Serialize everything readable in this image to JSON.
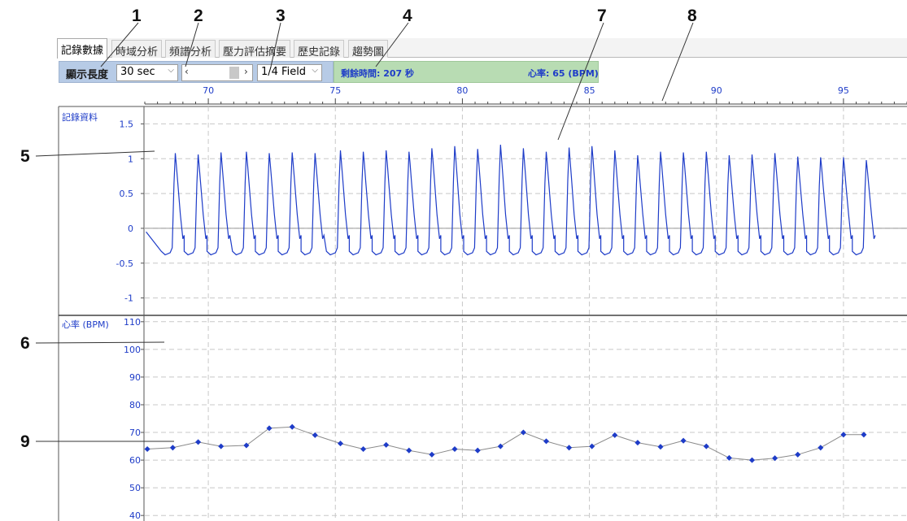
{
  "callouts": [
    "1",
    "2",
    "3",
    "4",
    "5",
    "6",
    "7",
    "8",
    "9"
  ],
  "tabs": [
    "記錄數據",
    "時域分析",
    "頻譜分析",
    "壓力評估摘要",
    "歷史記錄",
    "趨勢圖"
  ],
  "toolbar": {
    "display_length_label": "顯示長度",
    "display_length_value": "30 sec",
    "scroll_left": "‹",
    "scroll_right": "›",
    "field_value": "1/4 Field"
  },
  "status": {
    "remaining_time": "剩餘時間: 207 秒",
    "heart_rate": "心率: 65 (BPM)"
  },
  "colors": {
    "trace": "#1e3cc8",
    "hr_line": "#8a8a8a",
    "grid": "#c8c8c8",
    "toolbar_bg": "#b7cbe6",
    "status_bg": "#b8dcb3"
  },
  "chart_data": [
    {
      "type": "line",
      "title": "記錄資料",
      "x_ticks": [
        "70",
        "75",
        "80",
        "85",
        "90",
        "95"
      ],
      "y_ticks": [
        "1.5",
        "1",
        "0.5",
        "0",
        "-0.5",
        "-1"
      ],
      "xlim": [
        67.5,
        97.5
      ],
      "ylim": [
        -1.25,
        1.75
      ],
      "beats": [
        {
          "x": 68.7,
          "peak": 1.08
        },
        {
          "x": 69.6,
          "peak": 1.06
        },
        {
          "x": 70.5,
          "peak": 1.09
        },
        {
          "x": 71.5,
          "peak": 1.1
        },
        {
          "x": 72.4,
          "peak": 1.08
        },
        {
          "x": 73.3,
          "peak": 1.09
        },
        {
          "x": 74.2,
          "peak": 1.08
        },
        {
          "x": 75.2,
          "peak": 1.12
        },
        {
          "x": 76.1,
          "peak": 1.1
        },
        {
          "x": 77.0,
          "peak": 1.12
        },
        {
          "x": 77.9,
          "peak": 1.1
        },
        {
          "x": 78.8,
          "peak": 1.15
        },
        {
          "x": 79.7,
          "peak": 1.18
        },
        {
          "x": 80.6,
          "peak": 1.14
        },
        {
          "x": 81.5,
          "peak": 1.2
        },
        {
          "x": 82.4,
          "peak": 1.15
        },
        {
          "x": 83.3,
          "peak": 1.1
        },
        {
          "x": 84.2,
          "peak": 1.16
        },
        {
          "x": 85.1,
          "peak": 1.18
        },
        {
          "x": 86.0,
          "peak": 1.12
        },
        {
          "x": 86.9,
          "peak": 1.05
        },
        {
          "x": 87.8,
          "peak": 1.1
        },
        {
          "x": 88.7,
          "peak": 1.09
        },
        {
          "x": 89.6,
          "peak": 1.1
        },
        {
          "x": 90.5,
          "peak": 1.05
        },
        {
          "x": 91.4,
          "peak": 1.06
        },
        {
          "x": 92.3,
          "peak": 1.08
        },
        {
          "x": 93.2,
          "peak": 1.03
        },
        {
          "x": 94.1,
          "peak": 1.02
        },
        {
          "x": 95.0,
          "peak": 1.02
        },
        {
          "x": 95.9,
          "peak": 0.98
        }
      ],
      "baseline": -0.38
    },
    {
      "type": "line",
      "title": "心率 (BPM)",
      "x_ticks": [
        "70",
        "75",
        "80",
        "85",
        "90",
        "95"
      ],
      "y_ticks": [
        "110",
        "100",
        "90",
        "80",
        "70",
        "60",
        "50",
        "40"
      ],
      "xlim": [
        67.5,
        97.5
      ],
      "ylim": [
        38,
        112
      ],
      "x": [
        67.6,
        68.6,
        69.6,
        70.5,
        71.5,
        72.4,
        73.3,
        74.2,
        75.2,
        76.1,
        77.0,
        77.9,
        78.8,
        79.7,
        80.6,
        81.5,
        82.4,
        83.3,
        84.2,
        85.1,
        86.0,
        86.9,
        87.8,
        88.7,
        89.6,
        90.5,
        91.4,
        92.3,
        93.2,
        94.1,
        95.0,
        95.8
      ],
      "values": [
        64,
        64.5,
        66.5,
        65,
        65.3,
        71.5,
        72,
        69,
        66,
        64,
        65.5,
        63.5,
        62,
        64,
        63.5,
        65,
        70,
        66.8,
        64.5,
        65,
        69,
        66.3,
        64.8,
        67,
        65,
        60.8,
        60,
        60.7,
        62,
        64.5,
        69.2,
        69.2
      ]
    }
  ]
}
